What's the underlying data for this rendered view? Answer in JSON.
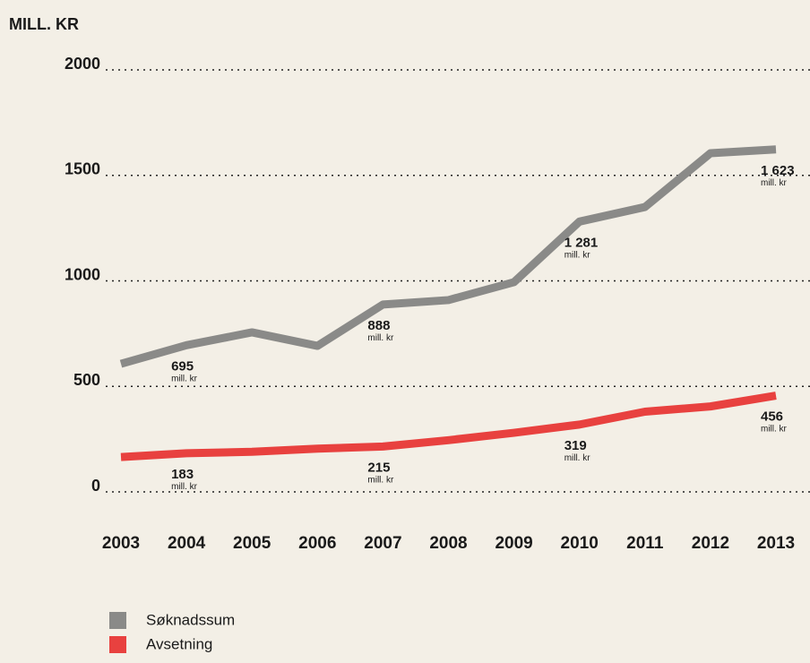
{
  "chart_data": {
    "type": "line",
    "y_label": "MILL. KR",
    "categories": [
      "2003",
      "2004",
      "2005",
      "2006",
      "2007",
      "2008",
      "2009",
      "2010",
      "2011",
      "2012",
      "2013"
    ],
    "series": [
      {
        "name": "Søknadssum",
        "color": "#8a8a88",
        "values": [
          607,
          695,
          756,
          692,
          888,
          909,
          994,
          1281,
          1350,
          1605,
          1623
        ],
        "value_labels": [
          null,
          "695",
          null,
          null,
          "888",
          null,
          null,
          "1 281",
          null,
          null,
          "1 623"
        ]
      },
      {
        "name": "Avsetning",
        "color": "#e8413f",
        "values": [
          165,
          183,
          190,
          205,
          215,
          245,
          280,
          319,
          380,
          405,
          456
        ],
        "value_labels": [
          null,
          "183",
          null,
          null,
          "215",
          null,
          null,
          "319",
          null,
          null,
          "456"
        ]
      }
    ],
    "data_label_unit": "mill. kr",
    "ylim": [
      0,
      2000
    ],
    "yticks": [
      0,
      500,
      1000,
      1500,
      2000
    ],
    "grid": true
  }
}
